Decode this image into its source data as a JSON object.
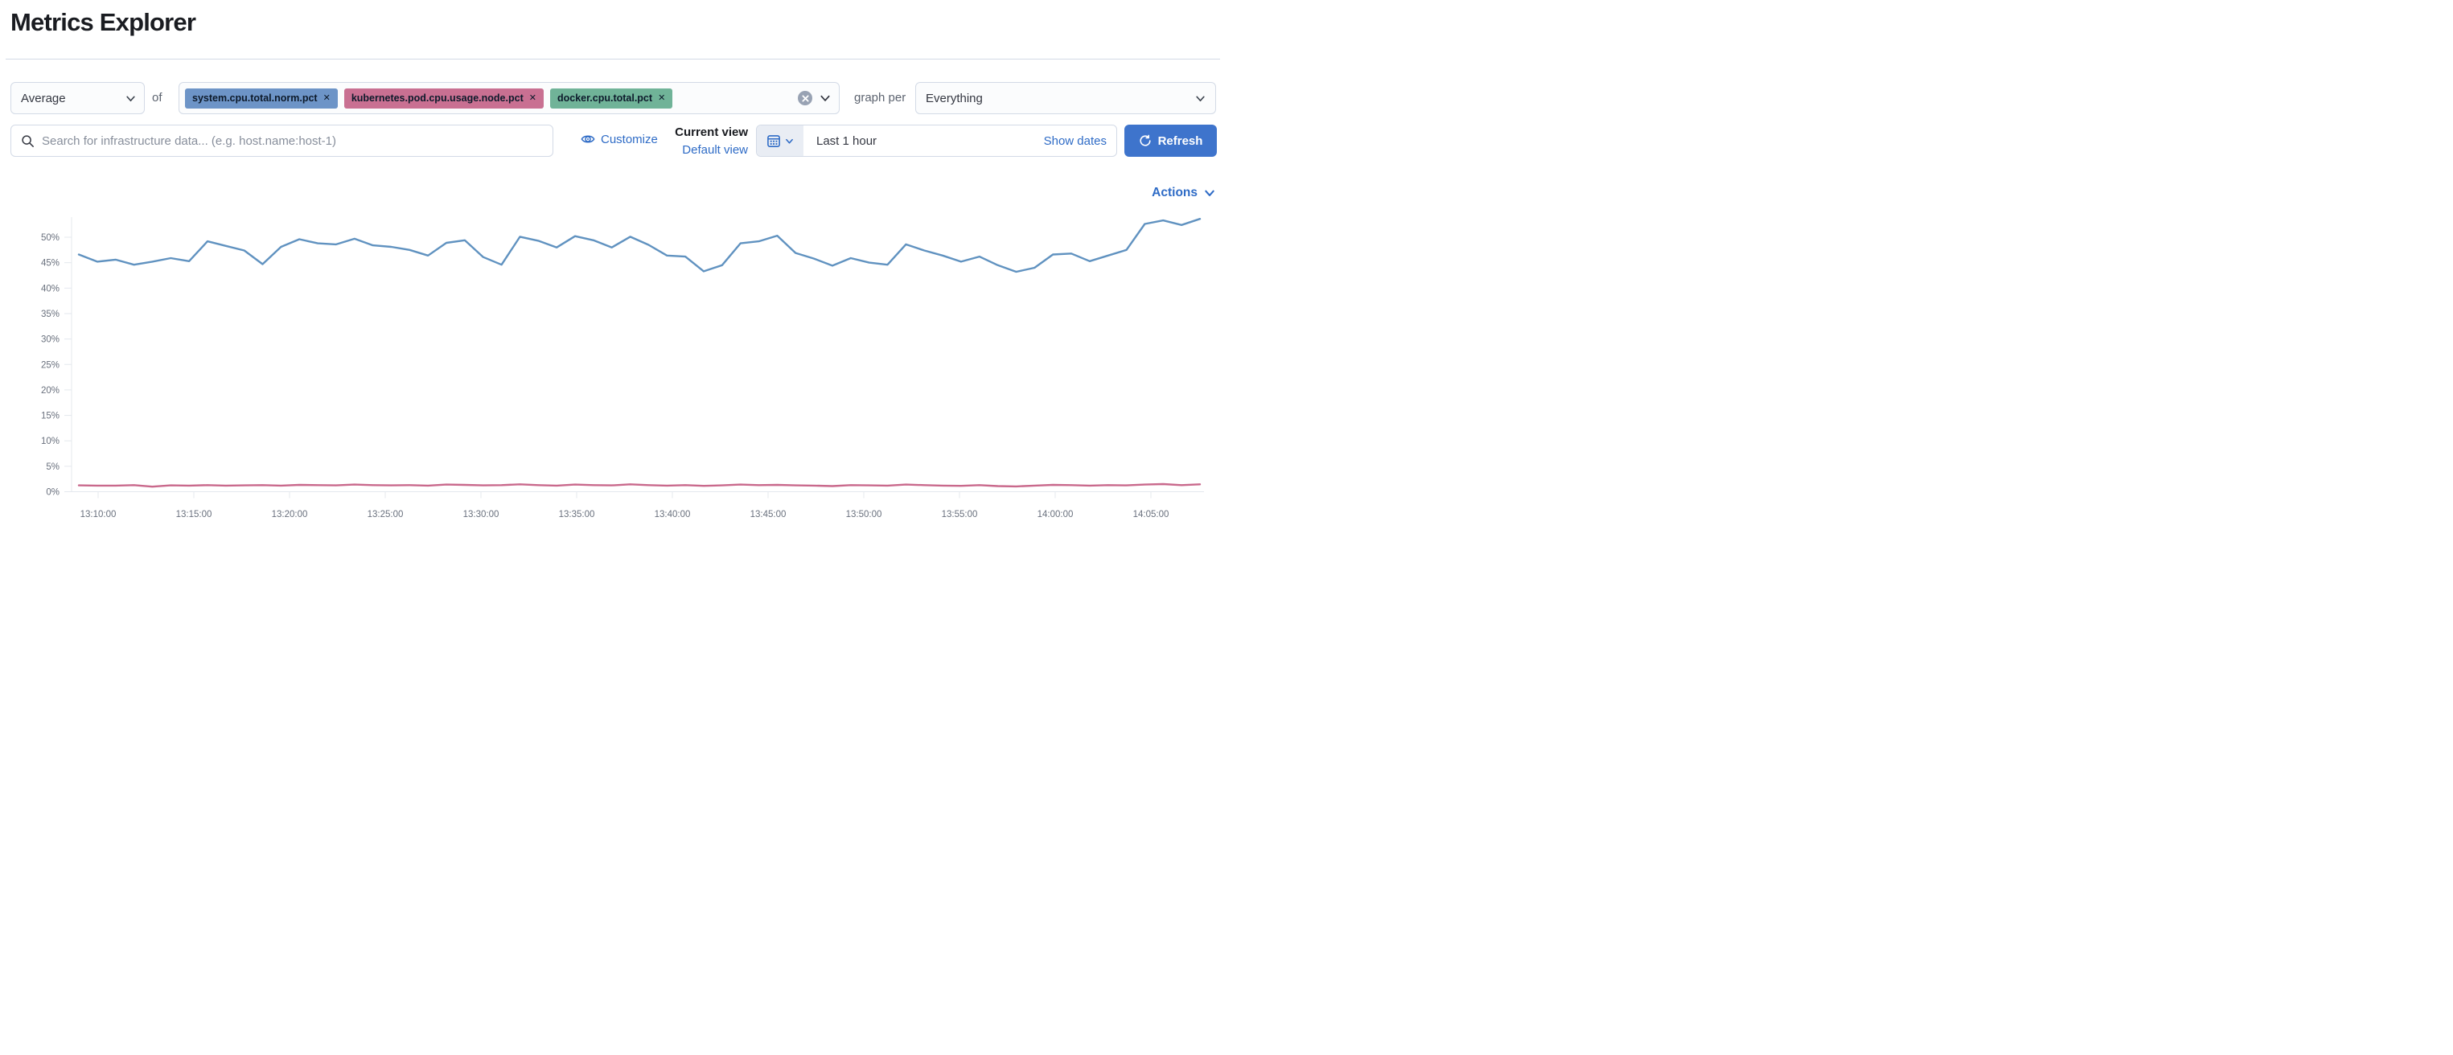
{
  "page": {
    "title": "Metrics Explorer"
  },
  "toolbar": {
    "aggregation": {
      "value": "Average"
    },
    "of_label": "of",
    "metrics": [
      {
        "label": "system.cpu.total.norm.pct",
        "color": "#6d94c7",
        "remove": "✕"
      },
      {
        "label": "kubernetes.pod.cpu.usage.node.pct",
        "color": "#c97092",
        "remove": "✕"
      },
      {
        "label": "docker.cpu.total.pct",
        "color": "#70b398",
        "remove": "✕"
      }
    ],
    "graph_per_label": "graph per",
    "group_by": {
      "value": "Everything"
    }
  },
  "searchbar": {
    "placeholder": "Search for infrastructure data... (e.g. host.name:host-1)",
    "value": ""
  },
  "view_controls": {
    "customize_label": "Customize",
    "current_view_label": "Current view",
    "view_name": "Default view"
  },
  "timepicker": {
    "range_label": "Last 1 hour",
    "show_dates_label": "Show dates",
    "refresh_label": "Refresh"
  },
  "actions_label": "Actions",
  "colors": {
    "primary_link": "#2e6bc6",
    "refresh_button": "#3e74cc",
    "border": "#d3dae6",
    "axis_text": "#69707d",
    "series_blue": "#6092c0",
    "series_pink": "#c9698c"
  },
  "chart_data": {
    "type": "line",
    "title": "",
    "xlabel": "",
    "ylabel": "",
    "y_axis_format": "percent",
    "ylim": [
      0,
      54.5
    ],
    "grid": false,
    "legend": "none",
    "y_ticks": [
      "0%",
      "5%",
      "10%",
      "15%",
      "20%",
      "25%",
      "30%",
      "35%",
      "40%",
      "45%",
      "50%"
    ],
    "x_ticks": [
      "13:10:00",
      "13:15:00",
      "13:20:00",
      "13:25:00",
      "13:30:00",
      "13:35:00",
      "13:40:00",
      "13:45:00",
      "13:50:00",
      "13:55:00",
      "14:00:00",
      "14:05:00"
    ],
    "x_start": "13:09:00",
    "x_end": "14:07:30",
    "series": [
      {
        "name": "system.cpu.total.norm.pct",
        "color": "#6092c0",
        "values": [
          46.6,
          45.2,
          45.6,
          44.6,
          45.2,
          45.9,
          45.3,
          49.2,
          48.3,
          47.4,
          44.7,
          48.1,
          49.6,
          48.8,
          48.6,
          49.7,
          48.4,
          48.1,
          47.5,
          46.4,
          48.9,
          49.4,
          46.1,
          44.6,
          50.1,
          49.3,
          48.0,
          50.2,
          49.4,
          48.0,
          50.1,
          48.5,
          46.4,
          46.2,
          43.3,
          44.5,
          48.8,
          49.2,
          50.3,
          46.9,
          45.8,
          44.4,
          45.9,
          45.0,
          44.6,
          48.6,
          47.4,
          46.4,
          45.2,
          46.2,
          44.5,
          43.2,
          44.0,
          46.6,
          46.8,
          45.3,
          46.4,
          47.5,
          52.6,
          53.3,
          52.4,
          53.6
        ]
      },
      {
        "name": "kubernetes.pod.cpu.usage.node.pct",
        "color": "#c9698c",
        "values": [
          1.25,
          1.2,
          1.2,
          1.3,
          1.0,
          1.25,
          1.2,
          1.3,
          1.2,
          1.25,
          1.3,
          1.2,
          1.35,
          1.3,
          1.25,
          1.4,
          1.3,
          1.25,
          1.3,
          1.2,
          1.4,
          1.35,
          1.25,
          1.3,
          1.45,
          1.3,
          1.2,
          1.4,
          1.3,
          1.25,
          1.45,
          1.3,
          1.2,
          1.3,
          1.15,
          1.25,
          1.4,
          1.3,
          1.35,
          1.25,
          1.2,
          1.1,
          1.3,
          1.25,
          1.2,
          1.4,
          1.3,
          1.2,
          1.15,
          1.3,
          1.1,
          1.05,
          1.2,
          1.35,
          1.3,
          1.2,
          1.3,
          1.25,
          1.4,
          1.5,
          1.3,
          1.45
        ]
      }
    ]
  }
}
